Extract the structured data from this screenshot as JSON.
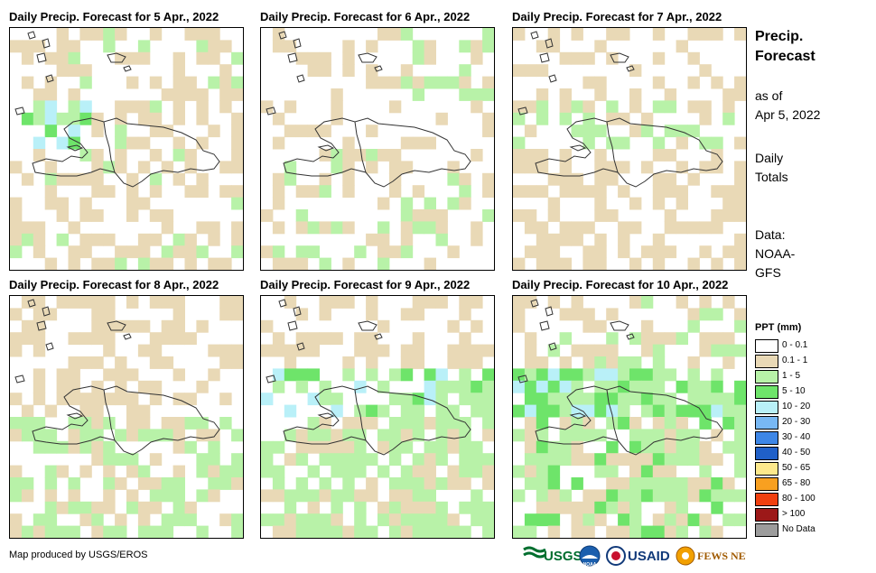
{
  "panels": [
    {
      "title": "Daily Precip. Forecast for 5 Apr., 2022",
      "pattern": 0
    },
    {
      "title": "Daily Precip. Forecast for 6 Apr., 2022",
      "pattern": 1
    },
    {
      "title": "Daily Precip. Forecast for 7 Apr., 2022",
      "pattern": 2
    },
    {
      "title": "Daily Precip. Forecast for 8 Apr., 2022",
      "pattern": 3
    },
    {
      "title": "Daily Precip. Forecast for 9 Apr., 2022",
      "pattern": 4
    },
    {
      "title": "Daily Precip. Forecast for 10 Apr., 2022",
      "pattern": 5
    }
  ],
  "sidebar": {
    "title_line1": "Precip.",
    "title_line2": "Forecast",
    "asof_line1": "as of",
    "asof_line2": "Apr 5, 2022",
    "daily_line1": "Daily",
    "daily_line2": "Totals",
    "data_line1": "Data:",
    "data_line2": "NOAA-",
    "data_line3": "GFS"
  },
  "legend": {
    "title": "PPT (mm)",
    "items": [
      {
        "label": "0 - 0.1",
        "color": "#ffffff"
      },
      {
        "label": "0.1 - 1",
        "color": "#e9d9b6"
      },
      {
        "label": "1 - 5",
        "color": "#b8f2a8"
      },
      {
        "label": "5 - 10",
        "color": "#6ee46a"
      },
      {
        "label": "10 - 20",
        "color": "#b9f0f8"
      },
      {
        "label": "20 - 30",
        "color": "#78b8f4"
      },
      {
        "label": "30 - 40",
        "color": "#3d86e6"
      },
      {
        "label": "40 - 50",
        "color": "#2060c8"
      },
      {
        "label": "50 - 65",
        "color": "#fde98c"
      },
      {
        "label": "65 - 80",
        "color": "#f8a020"
      },
      {
        "label": "80 - 100",
        "color": "#f04010"
      },
      {
        "label": "> 100",
        "color": "#9c1818"
      },
      {
        "label": "No Data",
        "color": "#9c9c9c"
      }
    ]
  },
  "footer": {
    "credit": "Map produced by USGS/EROS",
    "logos": [
      "USGS",
      "NOAA",
      "USAID",
      "FEWS NET"
    ]
  }
}
